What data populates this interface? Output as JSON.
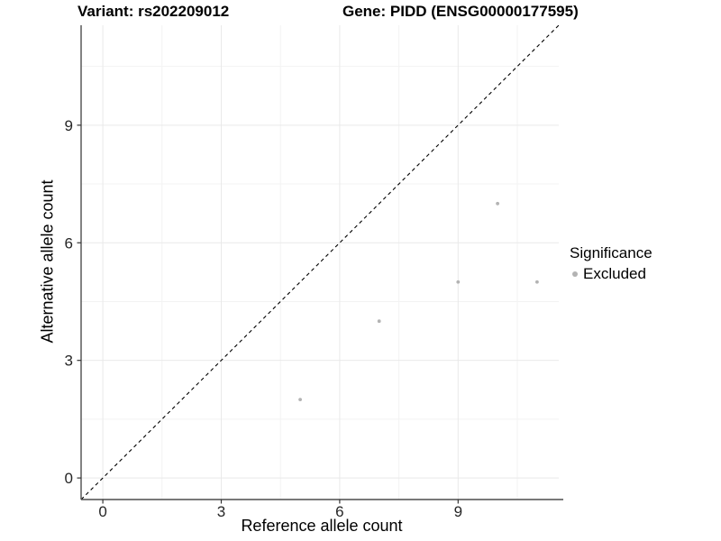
{
  "chart_data": {
    "type": "scatter",
    "title_left": "Variant: rs202209012",
    "title_right": "Gene: PIDD (ENSG00000177595)",
    "xlabel": "Reference allele count",
    "ylabel": "Alternative allele count",
    "xlim": [
      -0.55,
      11.55
    ],
    "ylim": [
      -0.55,
      11.55
    ],
    "x_major_ticks": [
      0,
      3,
      6,
      9
    ],
    "y_major_ticks": [
      0,
      3,
      6,
      9
    ],
    "x_minor_ticks": [
      1.5,
      4.5,
      7.5,
      10.5
    ],
    "y_minor_ticks": [
      1.5,
      4.5,
      7.5,
      10.5
    ],
    "grid": true,
    "identity_line": {
      "equation": "y = x",
      "style": "dashed",
      "color": "#000000"
    },
    "series": [
      {
        "name": "Excluded",
        "color": "#b3b3b3",
        "points": [
          [
            5,
            2
          ],
          [
            7,
            4
          ],
          [
            9,
            5
          ],
          [
            10,
            7
          ],
          [
            11,
            5
          ]
        ]
      }
    ],
    "legend": {
      "title": "Significance",
      "position": "right",
      "items": [
        {
          "label": "Excluded",
          "color": "#b3b3b3"
        }
      ]
    },
    "colors": {
      "background": "#ffffff",
      "grid_major": "#e9e9e9",
      "grid_minor": "#f3f3f3",
      "axis_line": "#4d4d4d",
      "tick_mark": "#333333",
      "tick_text": "#262626",
      "point": "#b3b3b3"
    }
  }
}
